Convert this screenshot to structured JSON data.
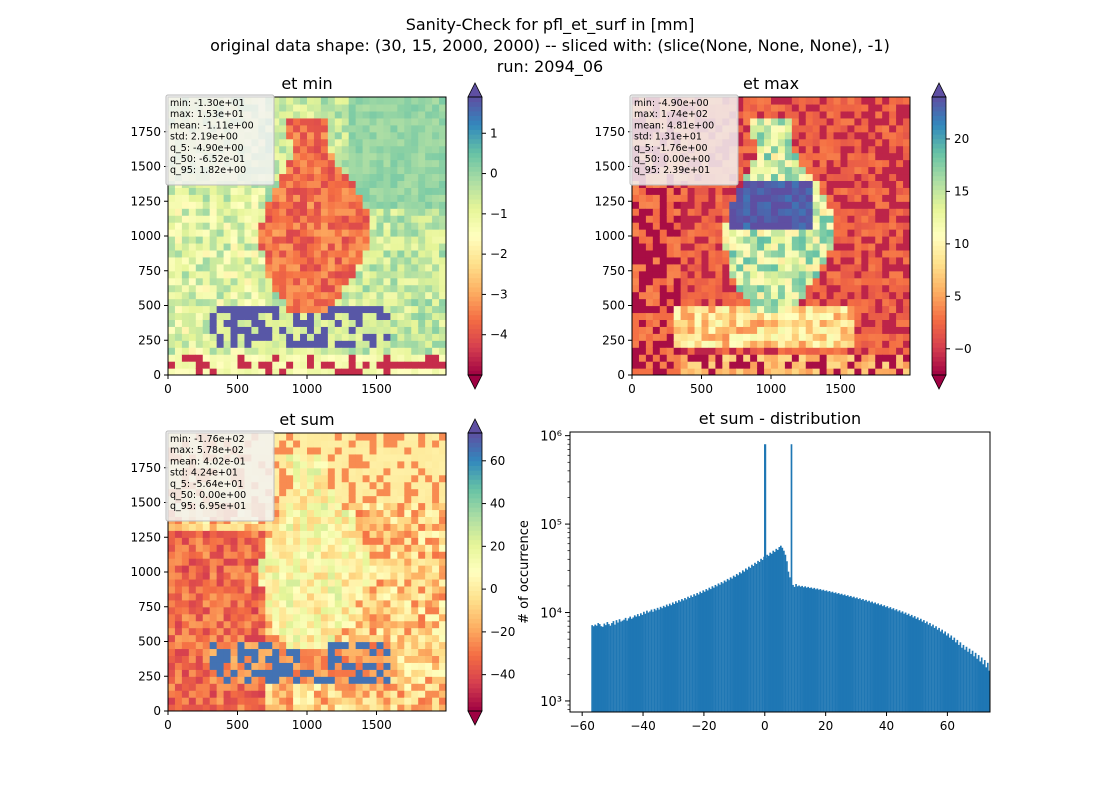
{
  "figure": {
    "title_lines": [
      "Sanity-Check for pfl_et_surf in [mm]",
      "original data shape: (30, 15, 2000, 2000) -- sliced with: (slice(None, None, None), -1)",
      "run: 2094_06"
    ]
  },
  "chart_data": [
    {
      "type": "heatmap",
      "title": "et min",
      "xlim": [
        0,
        2000
      ],
      "ylim": [
        0,
        2000
      ],
      "xticks": [
        0,
        500,
        1000,
        1500
      ],
      "yticks": [
        0,
        250,
        500,
        750,
        1000,
        1250,
        1500,
        1750
      ],
      "colormap": "Spectral",
      "color_range": [
        -5.0,
        1.9
      ],
      "colorbar_ticks": [
        -4,
        -3,
        -2,
        -1,
        0,
        1
      ],
      "colorbar_tick_labels": [
        "−4",
        "−3",
        "−2",
        "−1",
        "0",
        "1"
      ],
      "colorbar_extend": "both",
      "stats": [
        "min: -1.30e+01",
        "max: 1.53e+01",
        "mean: -1.11e+00",
        "std: 2.19e+00",
        "q_5: -4.90e+00",
        "q_50: -6.52e-01",
        "q_95: 1.82e+00"
      ],
      "pattern": "min"
    },
    {
      "type": "heatmap",
      "title": "et max",
      "xlim": [
        0,
        2000
      ],
      "ylim": [
        0,
        2000
      ],
      "xticks": [
        0,
        500,
        1000,
        1500
      ],
      "yticks": [
        0,
        250,
        500,
        750,
        1000,
        1250,
        1500,
        1750
      ],
      "colormap": "Spectral",
      "color_range": [
        -2.5,
        24
      ],
      "colorbar_ticks": [
        0,
        5,
        10,
        15,
        20
      ],
      "colorbar_tick_labels": [
        "−0",
        "5",
        "10",
        "15",
        "20"
      ],
      "colorbar_extend": "both",
      "stats": [
        "min: -4.90e+00",
        "max: 1.74e+02",
        "mean: 4.81e+00",
        "std: 1.31e+01",
        "q_5: -1.76e+00",
        "q_50: 0.00e+00",
        "q_95: 2.39e+01"
      ],
      "pattern": "max"
    },
    {
      "type": "heatmap",
      "title": "et sum",
      "xlim": [
        0,
        2000
      ],
      "ylim": [
        0,
        2000
      ],
      "xticks": [
        0,
        500,
        1000,
        1500
      ],
      "yticks": [
        0,
        250,
        500,
        750,
        1000,
        1250,
        1500,
        1750
      ],
      "colormap": "Spectral",
      "color_range": [
        -57,
        73
      ],
      "colorbar_ticks": [
        -40,
        -20,
        0,
        20,
        40,
        60
      ],
      "colorbar_tick_labels": [
        "−40",
        "−20",
        "0",
        "20",
        "40",
        "60"
      ],
      "colorbar_extend": "both",
      "stats": [
        "min: -1.76e+02",
        "max: 5.78e+02",
        "mean: 4.02e-01",
        "std: 4.24e+01",
        "q_5: -5.64e+01",
        "q_50: 0.00e+00",
        "q_95: 6.95e+01"
      ],
      "pattern": "sum"
    },
    {
      "type": "bar",
      "title": "et sum - distribution",
      "ylabel": "# of occurrence",
      "xlabel": "",
      "yscale": "log",
      "xlim": [
        -64,
        74
      ],
      "ylim": [
        750,
        1100000
      ],
      "xticks": [
        -60,
        -40,
        -20,
        0,
        20,
        40,
        60
      ],
      "xtick_labels": [
        "−60",
        "−40",
        "−20",
        "0",
        "20",
        "40",
        "60"
      ],
      "yticks": [
        1000,
        10000,
        100000,
        1000000
      ],
      "ytick_labels": [
        "10³",
        "10⁴",
        "10⁵",
        "10⁶"
      ],
      "bar_color": "#1f77b4",
      "bin_start": -57,
      "bin_width": 0.5,
      "peak_value": 800000,
      "values": [
        7200,
        7000,
        7300,
        7100,
        7600,
        7400,
        7000,
        6900,
        7500,
        7200,
        7800,
        7400,
        7100,
        7600,
        8000,
        7300,
        8200,
        7700,
        8400,
        7900,
        8100,
        8300,
        8700,
        8100,
        8600,
        9000,
        8500,
        8800,
        9300,
        9000,
        9600,
        9100,
        9800,
        9400,
        10200,
        9700,
        10500,
        10000,
        10300,
        10800,
        10200,
        11000,
        10600,
        11300,
        10800,
        11600,
        11200,
        11900,
        11500,
        12300,
        11800,
        12600,
        12100,
        13000,
        12500,
        13400,
        12900,
        13800,
        13300,
        14200,
        13700,
        14600,
        14100,
        15100,
        14600,
        15600,
        15000,
        16100,
        15500,
        16600,
        16000,
        17200,
        16600,
        17800,
        17200,
        18400,
        17800,
        19100,
        18400,
        19800,
        19100,
        20500,
        19800,
        21300,
        20600,
        22100,
        21400,
        23000,
        22300,
        24000,
        23200,
        25000,
        24200,
        26100,
        25300,
        27300,
        26400,
        28600,
        27700,
        30000,
        29000,
        31500,
        30500,
        33000,
        32000,
        34700,
        33600,
        36500,
        35400,
        38400,
        37300,
        40500,
        39300,
        42700,
        41500,
        45000,
        43800,
        47500,
        46200,
        50000,
        48500,
        52500,
        51000,
        55000,
        57000,
        54000,
        50000,
        45000,
        38000,
        29000,
        25000,
        800000,
        20500,
        19500,
        21000,
        19800,
        20200,
        19600,
        20000,
        19300,
        19800,
        19100,
        19500,
        18900,
        19200,
        18600,
        19000,
        18300,
        18700,
        18100,
        18400,
        17800,
        18100,
        17500,
        17800,
        17200,
        17500,
        16900,
        17200,
        16600,
        16900,
        16300,
        16600,
        16000,
        16300,
        15700,
        16000,
        15400,
        15700,
        15100,
        15400,
        14800,
        15100,
        14500,
        14800,
        14200,
        14500,
        13900,
        14200,
        13600,
        13900,
        13300,
        13600,
        13000,
        13300,
        12700,
        13000,
        12400,
        12700,
        12100,
        12400,
        11800,
        12100,
        11500,
        11800,
        11200,
        11500,
        10900,
        11200,
        10600,
        10900,
        10300,
        10600,
        10000,
        10300,
        9700,
        10000,
        9400,
        9700,
        9100,
        9400,
        8800,
        9100,
        8500,
        8800,
        8200,
        8500,
        7900,
        8200,
        7600,
        7900,
        7300,
        7600,
        7000,
        7300,
        6700,
        7000,
        6400,
        6700,
        6100,
        6400,
        5800,
        6100,
        5500,
        5800,
        5200,
        5500,
        4900,
        5200,
        4600,
        4900,
        4300,
        4600,
        4000,
        4300,
        3800,
        4100,
        3600,
        3900,
        3400,
        3700,
        3200,
        3500,
        3000,
        3300,
        2800,
        3100,
        2600,
        2900,
        2400,
        2700,
        2200,
        2500,
        2000,
        2300,
        1900,
        2100,
        1800,
        2000,
        950
      ]
    }
  ]
}
